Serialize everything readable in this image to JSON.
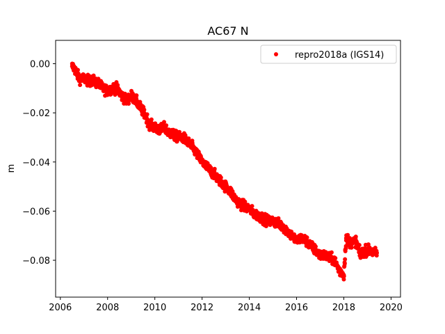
{
  "chart_data": {
    "type": "scatter",
    "title": "AC67 N",
    "xlabel": "",
    "ylabel": "m",
    "xlim": [
      2005.8,
      2020.4
    ],
    "ylim": [
      -0.095,
      0.0095
    ],
    "xticks": [
      2006,
      2008,
      2010,
      2012,
      2014,
      2016,
      2018,
      2020
    ],
    "xtick_labels": [
      "2006",
      "2008",
      "2010",
      "2012",
      "2014",
      "2016",
      "2018",
      "2020"
    ],
    "yticks": [
      0.0,
      -0.02,
      -0.04,
      -0.06,
      -0.08
    ],
    "ytick_labels": [
      "0.00",
      "−0.02",
      "−0.04",
      "−0.06",
      "−0.08"
    ],
    "grid": false,
    "legend_position": "top-right",
    "series": [
      {
        "name": "repro2018a (IGS14)",
        "color": "#ff0000",
        "marker": "circle",
        "x": [
          2006.5,
          2006.6,
          2006.7,
          2006.8,
          2007.0,
          2007.2,
          2007.4,
          2007.6,
          2007.8,
          2008.0,
          2008.2,
          2008.4,
          2008.6,
          2008.8,
          2009.0,
          2009.2,
          2009.4,
          2009.6,
          2009.8,
          2010.0,
          2010.2,
          2010.4,
          2010.6,
          2010.8,
          2011.0,
          2011.2,
          2011.4,
          2011.6,
          2011.8,
          2012.0,
          2012.2,
          2012.4,
          2012.6,
          2012.8,
          2013.0,
          2013.2,
          2013.4,
          2013.6,
          2013.8,
          2014.0,
          2014.2,
          2014.4,
          2014.6,
          2014.8,
          2015.0,
          2015.2,
          2015.4,
          2015.6,
          2015.8,
          2016.0,
          2016.2,
          2016.4,
          2016.6,
          2016.8,
          2017.0,
          2017.2,
          2017.4,
          2017.6,
          2017.8,
          2018.0,
          2018.1,
          2018.3,
          2018.5,
          2018.7,
          2018.9,
          2019.1,
          2019.3,
          2019.4
        ],
        "y": [
          -0.001,
          -0.002,
          -0.004,
          -0.006,
          -0.006,
          -0.007,
          -0.007,
          -0.008,
          -0.01,
          -0.011,
          -0.01,
          -0.01,
          -0.013,
          -0.015,
          -0.013,
          -0.015,
          -0.018,
          -0.021,
          -0.025,
          -0.026,
          -0.027,
          -0.026,
          -0.028,
          -0.029,
          -0.03,
          -0.03,
          -0.032,
          -0.034,
          -0.037,
          -0.04,
          -0.042,
          -0.044,
          -0.046,
          -0.048,
          -0.05,
          -0.052,
          -0.055,
          -0.057,
          -0.058,
          -0.059,
          -0.061,
          -0.062,
          -0.063,
          -0.064,
          -0.064,
          -0.065,
          -0.066,
          -0.068,
          -0.07,
          -0.072,
          -0.071,
          -0.072,
          -0.074,
          -0.076,
          -0.078,
          -0.078,
          -0.079,
          -0.08,
          -0.084,
          -0.086,
          -0.071,
          -0.073,
          -0.072,
          -0.078,
          -0.076,
          -0.076,
          -0.077,
          -0.077
        ],
        "spread": [
          0.002,
          0.002,
          0.002,
          0.002,
          0.002,
          0.002,
          0.002,
          0.002,
          0.002,
          0.002,
          0.002,
          0.002,
          0.002,
          0.002,
          0.002,
          0.002,
          0.002,
          0.002,
          0.002,
          0.002,
          0.002,
          0.002,
          0.002,
          0.002,
          0.002,
          0.002,
          0.002,
          0.002,
          0.002,
          0.002,
          0.002,
          0.002,
          0.002,
          0.002,
          0.002,
          0.002,
          0.002,
          0.002,
          0.002,
          0.002,
          0.002,
          0.002,
          0.002,
          0.002,
          0.002,
          0.002,
          0.002,
          0.002,
          0.002,
          0.002,
          0.002,
          0.002,
          0.002,
          0.002,
          0.002,
          0.002,
          0.002,
          0.002,
          0.002,
          0.002,
          0.002,
          0.002,
          0.002,
          0.002,
          0.002,
          0.002,
          0.002,
          0.002
        ]
      }
    ]
  }
}
